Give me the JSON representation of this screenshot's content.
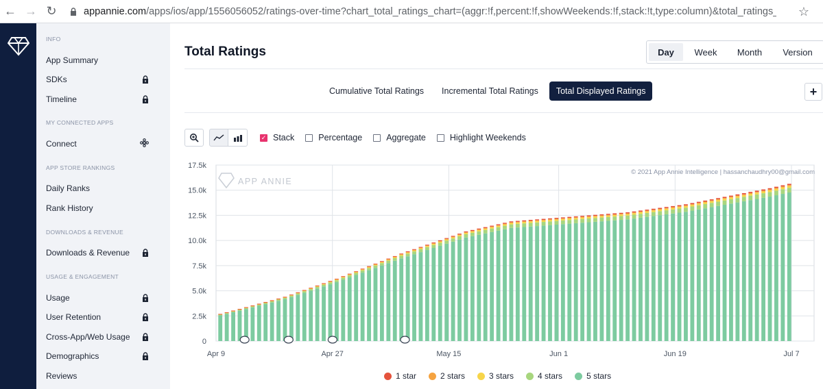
{
  "browser": {
    "url_domain": "appannie.com",
    "url_path": "/apps/ios/app/1556056052/ratings-over-time?chart_total_ratings_chart=(aggr:!f,percent:!f,showWeekends:!f,stack:!t,type:column)&total_ratings_chart$chart_compar..."
  },
  "sidebar": {
    "sections": [
      {
        "title": "INFO",
        "items": [
          {
            "label": "App Summary",
            "locked": false
          },
          {
            "label": "SDKs",
            "locked": true
          },
          {
            "label": "Timeline",
            "locked": true
          }
        ]
      },
      {
        "title": "MY CONNECTED APPS",
        "items": [
          {
            "label": "Connect",
            "locked": false
          }
        ]
      },
      {
        "title": "APP STORE RANKINGS",
        "items": [
          {
            "label": "Daily Ranks",
            "locked": false
          },
          {
            "label": "Rank History",
            "locked": false
          }
        ]
      },
      {
        "title": "DOWNLOADS & REVENUE",
        "items": [
          {
            "label": "Downloads & Revenue",
            "locked": true
          }
        ]
      },
      {
        "title": "USAGE & ENGAGEMENT",
        "items": [
          {
            "label": "Usage",
            "locked": true
          },
          {
            "label": "User Retention",
            "locked": true
          },
          {
            "label": "Cross-App/Web Usage",
            "locked": true
          },
          {
            "label": "Demographics",
            "locked": true
          },
          {
            "label": "Reviews",
            "locked": false
          }
        ]
      }
    ]
  },
  "main": {
    "title": "Total Ratings",
    "granularity": [
      "Day",
      "Week",
      "Month",
      "Version"
    ],
    "granularity_selected": "Day",
    "tabs": [
      "Cumulative Total Ratings",
      "Incremental Total Ratings",
      "Total Displayed Ratings"
    ],
    "active_tab": "Total Displayed Ratings",
    "options": [
      {
        "label": "Stack",
        "checked": true
      },
      {
        "label": "Percentage",
        "checked": false
      },
      {
        "label": "Aggregate",
        "checked": false
      },
      {
        "label": "Highlight Weekends",
        "checked": false
      }
    ],
    "watermark": "APP ANNIE",
    "copyright": "© 2021 App Annie Intelligence | hassanchaudhry00@gmail.com"
  },
  "colors": {
    "one_star": "#e5533c",
    "two_stars": "#f5a340",
    "three_stars": "#f7d54a",
    "four_stars": "#a8d67e",
    "five_stars": "#7dcba0",
    "nav_dark": "#0f1e3e",
    "accent": "#e8336e"
  },
  "chart_data": {
    "type": "bar",
    "stacked": true,
    "title": "Total Ratings",
    "ylim": [
      0,
      17500
    ],
    "yticks": [
      "0",
      "2.5k",
      "5.0k",
      "7.5k",
      "10.0k",
      "12.5k",
      "15.0k",
      "17.5k"
    ],
    "xticks": [
      "Apr 9",
      "Apr 27",
      "May 15",
      "Jun 1",
      "Jun 19",
      "Jul 7"
    ],
    "start_date": "Apr 9",
    "days": 95,
    "legend": [
      "1 star",
      "2 stars",
      "3 stars",
      "4 stars",
      "5 stars"
    ],
    "total_anchors": [
      [
        0,
        2700
      ],
      [
        3,
        3200
      ],
      [
        10,
        4400
      ],
      [
        18,
        6200
      ],
      [
        28,
        8700
      ],
      [
        38,
        10900
      ],
      [
        45,
        11900
      ],
      [
        55,
        12400
      ],
      [
        63,
        12800
      ],
      [
        72,
        13600
      ],
      [
        85,
        15200
      ],
      [
        94,
        16500
      ]
    ],
    "share": {
      "1 star": 0.008,
      "2 stars": 0.005,
      "3 stars": 0.012,
      "4 stars": 0.03,
      "5 stars": 0.945
    }
  }
}
